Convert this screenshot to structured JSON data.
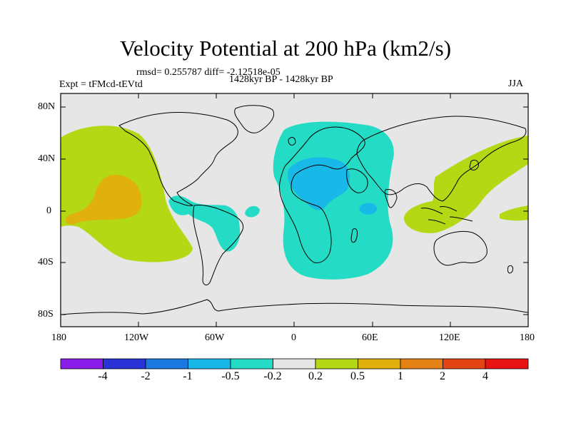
{
  "title": "Velocity Potential at 200 hPa (km2/s)",
  "stats": "rmsd= 0.255787 diff= -2.12518e-05",
  "expt": "Expt = tFMcd-tEVtd",
  "period": "1428kyr BP - 1428kyr BP",
  "season": "JJA",
  "lat_labels": [
    "80N",
    "40N",
    "0",
    "40S",
    "80S"
  ],
  "lon_labels": [
    "180",
    "120W",
    "60W",
    "0",
    "60E",
    "120E",
    "180"
  ],
  "colorbar": {
    "labels": [
      "-4",
      "-2",
      "-1",
      "-0.5",
      "-0.2",
      "0.2",
      "0.5",
      "1",
      "2",
      "4"
    ],
    "colors": [
      "#8a1ee8",
      "#2a33d8",
      "#1a78e0",
      "#18b8e8",
      "#24dcc6",
      "#e6e6e6",
      "#b4d814",
      "#e0b00c",
      "#e58216",
      "#e24414",
      "#e81414"
    ]
  },
  "colors": {
    "ocean": "#e6e6e6",
    "pos_weak": "#b4d814",
    "pos_mod": "#e0b00c",
    "neg_weak": "#24dcc6",
    "neg_mod": "#18b8e8"
  }
}
